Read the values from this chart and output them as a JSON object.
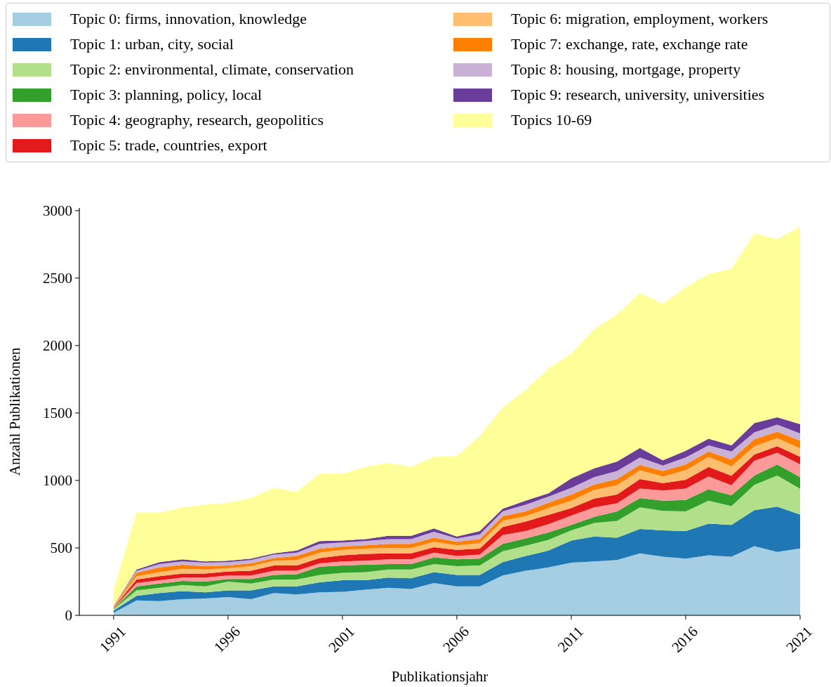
{
  "chart_data": {
    "type": "area",
    "stacked": true,
    "xlabel": "Publikationsjahr",
    "ylabel": "Anzahl Publikationen",
    "x": [
      1991,
      1992,
      1993,
      1994,
      1995,
      1996,
      1997,
      1998,
      1999,
      2000,
      2001,
      2002,
      2003,
      2004,
      2005,
      2006,
      2007,
      2008,
      2009,
      2010,
      2011,
      2012,
      2013,
      2014,
      2015,
      2016,
      2017,
      2018,
      2019,
      2020,
      2021
    ],
    "xlim": [
      1989.5,
      2021
    ],
    "xticks": [
      1991,
      1996,
      2001,
      2006,
      2011,
      2016,
      2021
    ],
    "ylim": [
      0,
      3020
    ],
    "yticks": [
      0,
      500,
      1000,
      1500,
      2000,
      2500,
      3000
    ],
    "legend": "top",
    "grid": false,
    "series": [
      {
        "name": "Topic 0: firms, innovation, knowledge",
        "color": "#a6cee3",
        "values": [
          20,
          110,
          105,
          120,
          125,
          135,
          120,
          165,
          155,
          170,
          175,
          190,
          205,
          195,
          240,
          215,
          215,
          295,
          330,
          355,
          390,
          400,
          410,
          460,
          435,
          420,
          445,
          435,
          513,
          470,
          496
        ]
      },
      {
        "name": "Topic 1: urban, city, social",
        "color": "#1f78b4",
        "values": [
          15,
          35,
          60,
          60,
          45,
          50,
          65,
          50,
          60,
          75,
          85,
          70,
          75,
          80,
          80,
          85,
          85,
          100,
          110,
          125,
          165,
          185,
          165,
          180,
          195,
          205,
          235,
          235,
          267,
          336,
          251
        ]
      },
      {
        "name": "Topic 2: environmental, climate, conservation",
        "color": "#b2df8a",
        "values": [
          10,
          40,
          40,
          45,
          45,
          65,
          50,
          50,
          50,
          55,
          55,
          60,
          60,
          65,
          60,
          65,
          70,
          80,
          75,
          80,
          75,
          100,
          125,
          160,
          145,
          145,
          170,
          140,
          187,
          230,
          191
        ]
      },
      {
        "name": "Topic 3: planning, policy, local",
        "color": "#33a02c",
        "values": [
          5,
          30,
          30,
          30,
          35,
          20,
          35,
          35,
          40,
          60,
          55,
          55,
          40,
          40,
          50,
          50,
          50,
          55,
          55,
          55,
          40,
          45,
          70,
          70,
          75,
          85,
          85,
          80,
          69,
          82,
          86
        ]
      },
      {
        "name": "Topic 4: geography, research, geopolitics",
        "color": "#fb9a99",
        "values": [
          5,
          25,
          25,
          25,
          30,
          25,
          25,
          30,
          25,
          25,
          30,
          30,
          35,
          35,
          35,
          25,
          30,
          65,
          55,
          60,
          70,
          70,
          60,
          70,
          75,
          85,
          95,
          75,
          110,
          87,
          96
        ]
      },
      {
        "name": "Topic 5: trade, countries, export",
        "color": "#e31a1c",
        "values": [
          5,
          25,
          30,
          30,
          30,
          30,
          35,
          40,
          40,
          40,
          45,
          50,
          45,
          45,
          40,
          45,
          45,
          60,
          70,
          70,
          55,
          65,
          65,
          70,
          55,
          65,
          70,
          70,
          46,
          48,
          55
        ]
      },
      {
        "name": "Topic 6: migration, employment, workers",
        "color": "#fdbf6f",
        "values": [
          3,
          25,
          30,
          35,
          30,
          25,
          35,
          35,
          40,
          40,
          40,
          40,
          40,
          40,
          40,
          35,
          40,
          45,
          40,
          50,
          55,
          65,
          70,
          65,
          50,
          70,
          75,
          70,
          61,
          61,
          63
        ]
      },
      {
        "name": "Topic 7: exchange, rate, exchange rate",
        "color": "#ff7f00",
        "values": [
          3,
          25,
          35,
          30,
          25,
          20,
          20,
          20,
          30,
          30,
          25,
          25,
          30,
          30,
          30,
          25,
          30,
          35,
          35,
          40,
          45,
          40,
          45,
          40,
          40,
          45,
          40,
          50,
          52,
          47,
          57
        ]
      },
      {
        "name": "Topic 8: housing, mortgage, property",
        "color": "#cab2d6",
        "values": [
          2,
          15,
          25,
          25,
          25,
          25,
          25,
          25,
          25,
          35,
          30,
          30,
          35,
          35,
          45,
          25,
          35,
          35,
          50,
          45,
          50,
          55,
          60,
          55,
          40,
          50,
          45,
          60,
          52,
          53,
          54
        ]
      },
      {
        "name": "Topic 9: research, university, universities",
        "color": "#6a3d9a",
        "values": [
          2,
          10,
          15,
          15,
          10,
          10,
          10,
          10,
          15,
          20,
          15,
          15,
          25,
          25,
          25,
          15,
          25,
          20,
          30,
          25,
          70,
          65,
          70,
          70,
          40,
          50,
          50,
          45,
          69,
          54,
          69
        ]
      },
      {
        "name": "Topics 10-69",
        "color": "#ffff99",
        "values": [
          120,
          420,
          365,
          385,
          420,
          430,
          450,
          485,
          435,
          500,
          495,
          535,
          540,
          510,
          530,
          595,
          705,
          750,
          820,
          925,
          925,
          1030,
          1090,
          1150,
          1160,
          1210,
          1220,
          1310,
          1404,
          1322,
          1462
        ]
      }
    ]
  }
}
